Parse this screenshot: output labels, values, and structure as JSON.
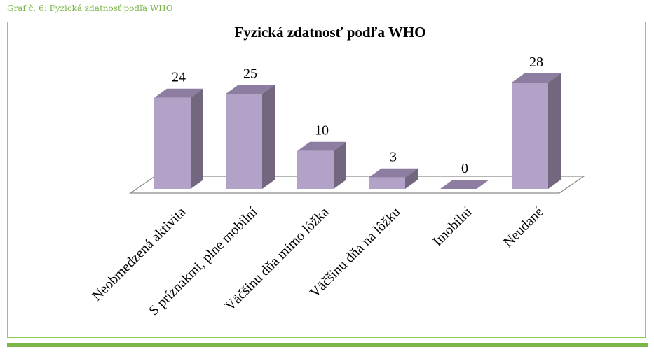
{
  "caption": "Graf č. 6: Fyzická zdatnosť podľa WHO",
  "colors": {
    "accent": "#7ab648",
    "bar_front": "#b3a2c8",
    "bar_side": "#72677f",
    "bar_top": "#8d7da1"
  },
  "chart_data": {
    "type": "bar",
    "title": "Fyzická zdatnosť podľa WHO",
    "categories": [
      "Neobmedzená aktivita",
      "S príznakmi, plne mobilní",
      "Väčšinu dňa mimo lôžka",
      "Väčšinu dňa na lôžku",
      "Imobilní",
      "Neudané"
    ],
    "values": [
      24,
      25,
      10,
      3,
      0,
      28
    ],
    "ylim": [
      0,
      28
    ],
    "grid": false,
    "legend": "none",
    "three_d": true
  }
}
